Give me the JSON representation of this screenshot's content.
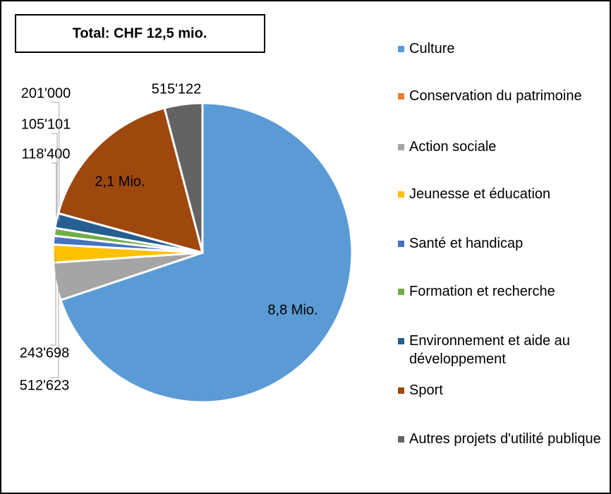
{
  "chart_data": {
    "type": "pie",
    "title": "Total: CHF 12,5 mio.",
    "categories": [
      "Culture",
      "Conservation du patrimoine",
      "Action sociale",
      "Jeunesse et éducation",
      "Santé et handicap",
      "Formation et recherche",
      "Environnement et aide au développement",
      "Sport",
      "Autres projets d'utilité publique"
    ],
    "values": [
      8800000,
      0,
      512623,
      243698,
      118400,
      105101,
      201000,
      2100000,
      515122
    ],
    "value_labels": [
      "8,8 Mio.",
      null,
      "512'623",
      "243'698",
      "118'400",
      "105'101",
      "201'000",
      "2,1 Mio.",
      "515'122"
    ],
    "colors": [
      "#5b9bd5",
      "#ed7d31",
      "#a5a5a5",
      "#ffc000",
      "#4472c4",
      "#70ad47",
      "#255e91",
      "#9e480e",
      "#636363"
    ],
    "legend": "right"
  }
}
